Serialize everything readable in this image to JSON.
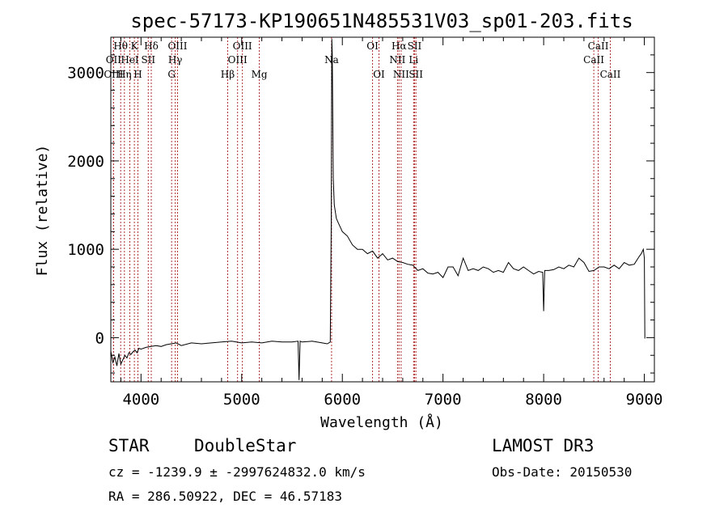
{
  "chart_data": {
    "type": "line",
    "title": "spec-57173-KP190651N485531V03_sp01-203.fits",
    "xlabel": "Wavelength (Å)",
    "ylabel": "Flux (relative)",
    "xlim": [
      3700,
      9100
    ],
    "ylim": [
      -500,
      3400
    ],
    "xticks": [
      4000,
      5000,
      6000,
      7000,
      8000,
      9000
    ],
    "xtick_labels": [
      "4000",
      "5000",
      "6000",
      "7000",
      "8000",
      "9000"
    ],
    "yticks": [
      0,
      1000,
      2000,
      3000
    ],
    "ytick_labels": [
      "0",
      "1000",
      "2000",
      "3000"
    ],
    "series": [
      {
        "name": "flux",
        "x": [
          3700,
          3720,
          3740,
          3760,
          3780,
          3800,
          3820,
          3840,
          3860,
          3880,
          3900,
          3920,
          3940,
          3960,
          3980,
          4000,
          4050,
          4100,
          4150,
          4200,
          4250,
          4300,
          4350,
          4400,
          4500,
          4600,
          4700,
          4800,
          4900,
          5000,
          5100,
          5200,
          5300,
          5400,
          5500,
          5560,
          5570,
          5580,
          5600,
          5700,
          5800,
          5850,
          5880,
          5890,
          5895,
          5900,
          5905,
          5910,
          5920,
          5940,
          5960,
          5980,
          6000,
          6050,
          6100,
          6150,
          6200,
          6250,
          6300,
          6350,
          6400,
          6450,
          6500,
          6550,
          6600,
          6650,
          6700,
          6750,
          6800,
          6850,
          6900,
          6950,
          7000,
          7050,
          7100,
          7150,
          7200,
          7250,
          7300,
          7350,
          7400,
          7450,
          7500,
          7550,
          7600,
          7650,
          7700,
          7750,
          7800,
          7850,
          7900,
          7950,
          7990,
          8000,
          8010,
          8050,
          8100,
          8150,
          8200,
          8250,
          8300,
          8350,
          8400,
          8450,
          8500,
          8550,
          8600,
          8650,
          8700,
          8750,
          8800,
          8850,
          8900,
          8950,
          8970,
          8990,
          9000,
          9005
        ],
        "y": [
          -150,
          -280,
          -220,
          -320,
          -180,
          -300,
          -250,
          -200,
          -230,
          -170,
          -190,
          -160,
          -140,
          -170,
          -120,
          -130,
          -110,
          -100,
          -90,
          -100,
          -80,
          -70,
          -60,
          -90,
          -60,
          -70,
          -60,
          -50,
          -40,
          -60,
          -50,
          -60,
          -40,
          -50,
          -50,
          -40,
          -480,
          -40,
          -50,
          -40,
          -60,
          -70,
          -50,
          1300,
          3380,
          3200,
          2500,
          1800,
          1500,
          1350,
          1300,
          1250,
          1200,
          1150,
          1050,
          1000,
          1000,
          950,
          980,
          900,
          950,
          880,
          900,
          860,
          850,
          830,
          820,
          760,
          780,
          730,
          720,
          740,
          680,
          800,
          800,
          700,
          900,
          760,
          780,
          760,
          800,
          780,
          740,
          760,
          740,
          850,
          780,
          760,
          800,
          760,
          720,
          750,
          740,
          300,
          760,
          760,
          770,
          800,
          780,
          820,
          800,
          900,
          850,
          750,
          760,
          800,
          800,
          780,
          820,
          780,
          850,
          820,
          830,
          920,
          950,
          1000,
          900,
          -10
        ]
      }
    ],
    "lines": [
      {
        "name": "Hθ",
        "x": 3798,
        "row": 0
      },
      {
        "name": "OII",
        "x": 3727,
        "row": 1
      },
      {
        "name": "OIII",
        "x": 3727,
        "row": 2
      },
      {
        "name": "Hη",
        "x": 3835,
        "row": 2
      },
      {
        "name": "HeI",
        "x": 3889,
        "row": 1
      },
      {
        "name": "K",
        "x": 3934,
        "row": 0
      },
      {
        "name": "H",
        "x": 3969,
        "row": 2
      },
      {
        "name": "SII",
        "x": 4072,
        "row": 1
      },
      {
        "name": "Hδ",
        "x": 4102,
        "row": 0
      },
      {
        "name": "OIII",
        "x": 4363,
        "row": 0
      },
      {
        "name": "Hγ",
        "x": 4340,
        "row": 1
      },
      {
        "name": "G",
        "x": 4304,
        "row": 2
      },
      {
        "name": "Hβ",
        "x": 4861,
        "row": 2
      },
      {
        "name": "OIII",
        "x": 5007,
        "row": 0
      },
      {
        "name": "OIII",
        "x": 4959,
        "row": 1
      },
      {
        "name": "Mg",
        "x": 5175,
        "row": 2
      },
      {
        "name": "Na",
        "x": 5893,
        "row": 1
      },
      {
        "name": "OI",
        "x": 6300,
        "row": 0
      },
      {
        "name": "OI",
        "x": 6364,
        "row": 2
      },
      {
        "name": "Hα",
        "x": 6563,
        "row": 0
      },
      {
        "name": "NII",
        "x": 6548,
        "row": 1
      },
      {
        "name": "NII",
        "x": 6584,
        "row": 2
      },
      {
        "name": "SII",
        "x": 6717,
        "row": 0
      },
      {
        "name": "Li",
        "x": 6708,
        "row": 1
      },
      {
        "name": "SII",
        "x": 6731,
        "row": 2
      },
      {
        "name": "CaII",
        "x": 8542,
        "row": 0
      },
      {
        "name": "CaII",
        "x": 8498,
        "row": 1
      },
      {
        "name": "CaII",
        "x": 8662,
        "row": 2
      }
    ]
  },
  "info": {
    "class": "STAR",
    "subclass": "DoubleStar",
    "survey": "LAMOST DR3",
    "cz": "cz = -1239.9 ± -2997624832.0 km/s",
    "obs_date": "Obs-Date: 20150530",
    "radec": "RA = 286.50922, DEC =  46.57183"
  }
}
